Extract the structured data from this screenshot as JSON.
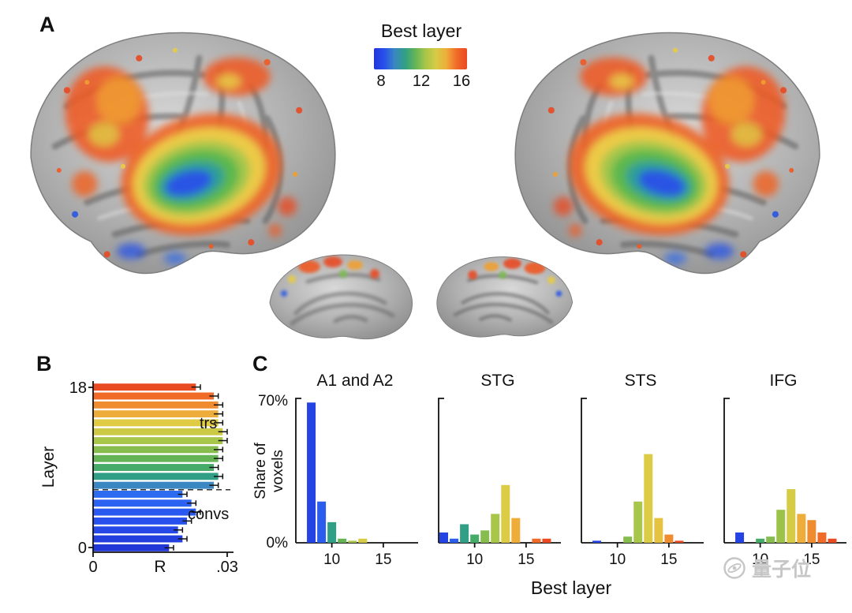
{
  "panels": {
    "a": "A",
    "b": "B",
    "c": "C"
  },
  "colorbar": {
    "title": "Best layer",
    "ticks": [
      "8",
      "12",
      "16"
    ],
    "gradient_stops": [
      "#2334d8",
      "#2850ec",
      "#3a87c2",
      "#319f85",
      "#64b456",
      "#a8c64a",
      "#d6cb44",
      "#eead3a",
      "#f06a28",
      "#ea4a22"
    ]
  },
  "watermark": {
    "text": "量子位",
    "icon": "qbitai-logo-icon"
  },
  "chart_data": [
    {
      "id": "layer-vs-r",
      "panel": "B",
      "type": "bar",
      "orientation": "horizontal",
      "ylabel": "Layer",
      "xlabel": "R",
      "xlim": [
        0,
        0.03
      ],
      "x_tick_labels": [
        "0",
        ".03"
      ],
      "y_tick_labels": [
        "18",
        "0"
      ],
      "divider_after_layer": 6,
      "annotations": {
        "transformers": "trs",
        "convolutions": "convs"
      },
      "layers": [
        0,
        1,
        2,
        3,
        4,
        5,
        6,
        7,
        8,
        9,
        10,
        11,
        12,
        13,
        14,
        15,
        16,
        17,
        18
      ],
      "values": [
        0.017,
        0.02,
        0.019,
        0.021,
        0.023,
        0.022,
        0.02,
        0.027,
        0.028,
        0.027,
        0.028,
        0.028,
        0.029,
        0.029,
        0.028,
        0.028,
        0.028,
        0.027,
        0.023
      ],
      "errors": [
        0.001,
        0.001,
        0.001,
        0.001,
        0.001,
        0.001,
        0.001,
        0.001,
        0.001,
        0.001,
        0.001,
        0.001,
        0.001,
        0.001,
        0.001,
        0.001,
        0.001,
        0.001,
        0.001
      ],
      "colors": [
        "#2138d6",
        "#2340de",
        "#2548e6",
        "#2750ec",
        "#2959f0",
        "#2b62f2",
        "#2d6cf0",
        "#3a87c2",
        "#319f85",
        "#46ab68",
        "#64b456",
        "#86bd4e",
        "#a8c64a",
        "#ccc946",
        "#e0cb44",
        "#eead3a",
        "#f08c30",
        "#f06a28",
        "#ea4a22"
      ]
    },
    {
      "id": "best-layer-histograms",
      "panel": "C",
      "type": "bar",
      "xlabel": "Best layer",
      "ylabel_lines": [
        "Share of",
        "voxels"
      ],
      "ylim": [
        0,
        70
      ],
      "y_tick_labels": [
        "70%",
        "0%"
      ],
      "x_ticks": [
        10,
        15
      ],
      "x_range": [
        6.5,
        18
      ],
      "subplots": [
        {
          "title": "A1 and A2",
          "bars": [
            {
              "layer": 8,
              "value": 68,
              "color": "#2443e2"
            },
            {
              "layer": 9,
              "value": 20,
              "color": "#2a5cee"
            },
            {
              "layer": 10,
              "value": 10,
              "color": "#319f85"
            },
            {
              "layer": 11,
              "value": 2,
              "color": "#64b456"
            },
            {
              "layer": 12,
              "value": 1,
              "color": "#a8c64a"
            },
            {
              "layer": 13,
              "value": 2,
              "color": "#d6cb44"
            }
          ]
        },
        {
          "title": "STG",
          "bars": [
            {
              "layer": 7,
              "value": 5,
              "color": "#2443e2"
            },
            {
              "layer": 8,
              "value": 2,
              "color": "#2a5cee"
            },
            {
              "layer": 9,
              "value": 9,
              "color": "#319f85"
            },
            {
              "layer": 10,
              "value": 4,
              "color": "#46ab68"
            },
            {
              "layer": 11,
              "value": 6,
              "color": "#86bd4e"
            },
            {
              "layer": 12,
              "value": 14,
              "color": "#a8c64a"
            },
            {
              "layer": 13,
              "value": 28,
              "color": "#dccb44"
            },
            {
              "layer": 14,
              "value": 12,
              "color": "#eead3a"
            },
            {
              "layer": 16,
              "value": 2,
              "color": "#f06a28"
            },
            {
              "layer": 17,
              "value": 2,
              "color": "#ea4a22"
            }
          ]
        },
        {
          "title": "STS",
          "bars": [
            {
              "layer": 8,
              "value": 1,
              "color": "#2443e2"
            },
            {
              "layer": 11,
              "value": 3,
              "color": "#86bd4e"
            },
            {
              "layer": 12,
              "value": 20,
              "color": "#a8c64a"
            },
            {
              "layer": 13,
              "value": 43,
              "color": "#dccb44"
            },
            {
              "layer": 14,
              "value": 12,
              "color": "#e6c242"
            },
            {
              "layer": 15,
              "value": 4,
              "color": "#f08c30"
            },
            {
              "layer": 16,
              "value": 1,
              "color": "#ea4a22"
            }
          ]
        },
        {
          "title": "IFG",
          "bars": [
            {
              "layer": 8,
              "value": 5,
              "color": "#2443e2"
            },
            {
              "layer": 10,
              "value": 2,
              "color": "#46ab68"
            },
            {
              "layer": 11,
              "value": 3,
              "color": "#86bd4e"
            },
            {
              "layer": 12,
              "value": 16,
              "color": "#9cc24a"
            },
            {
              "layer": 13,
              "value": 26,
              "color": "#d6cb44"
            },
            {
              "layer": 14,
              "value": 14,
              "color": "#eead3a"
            },
            {
              "layer": 15,
              "value": 11,
              "color": "#f08c30"
            },
            {
              "layer": 16,
              "value": 5,
              "color": "#f06a28"
            },
            {
              "layer": 17,
              "value": 2,
              "color": "#ea4a22"
            }
          ]
        }
      ]
    }
  ]
}
